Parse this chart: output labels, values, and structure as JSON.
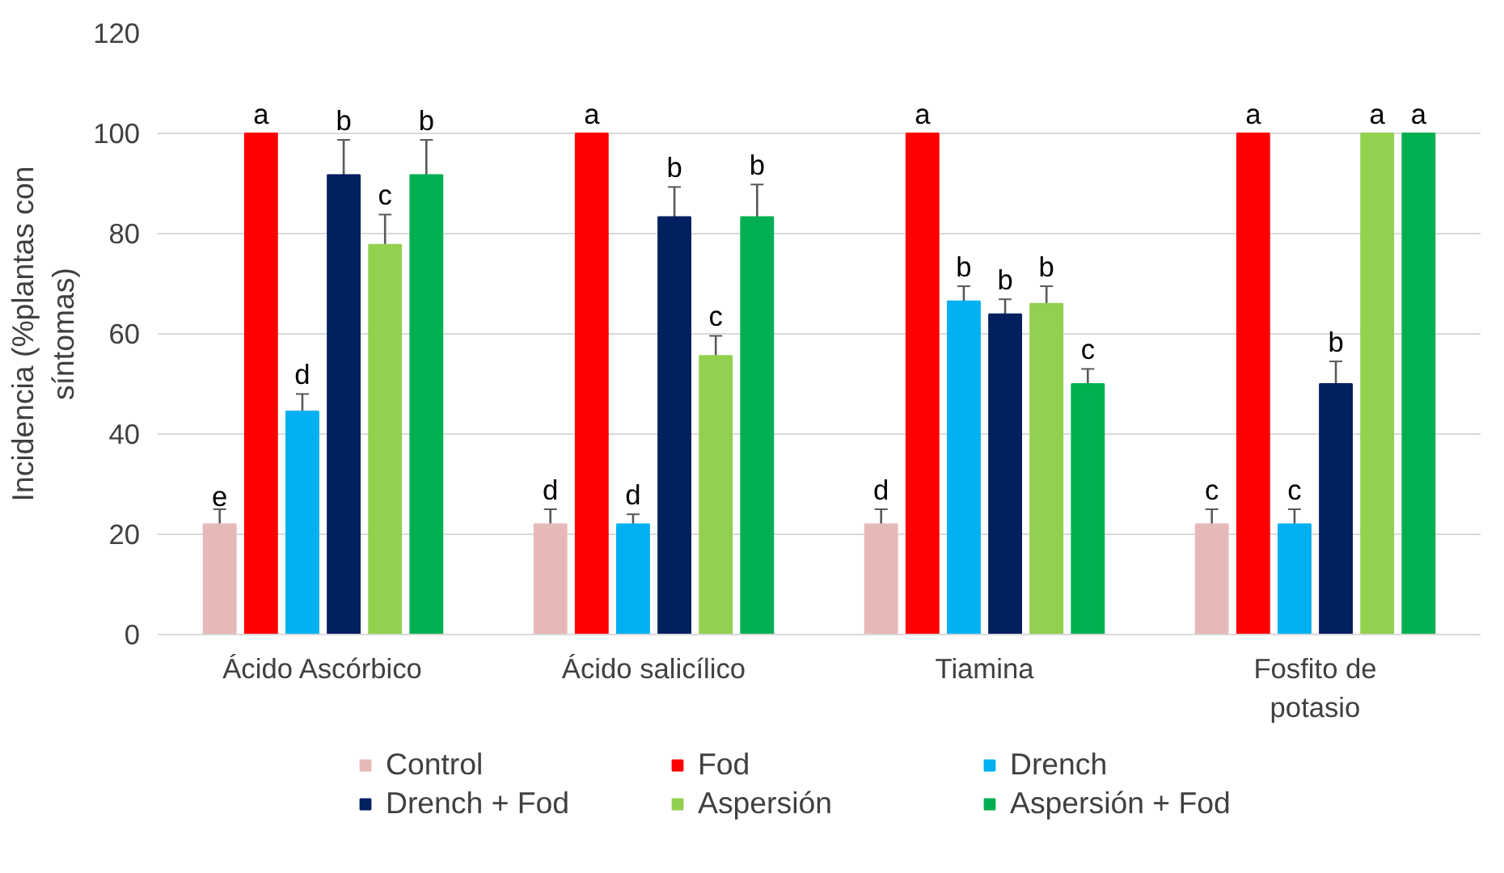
{
  "chart_data": {
    "type": "bar",
    "ylabel": "Incidencia (%plantas con síntomas)",
    "categories": [
      "Ácido Ascórbico",
      "Ácido salicílico",
      "Tiamina",
      "Fosfito de potasio"
    ],
    "ylim": [
      0,
      120
    ],
    "yticks": [
      0,
      20,
      40,
      60,
      80,
      100,
      120
    ],
    "grid": "y",
    "legend": "bottom",
    "series": [
      {
        "name": "Control",
        "color": "#e6b9b8",
        "values": [
          22,
          22,
          22,
          22
        ],
        "errors": [
          3,
          3,
          3,
          3
        ],
        "value_labels": [
          "e",
          "d",
          "d",
          "c"
        ]
      },
      {
        "name": "Fod",
        "color": "#ff0000",
        "values": [
          100,
          100,
          100,
          100
        ],
        "errors": [
          0,
          0,
          0,
          0
        ],
        "value_labels": [
          "a",
          "a",
          "a",
          "a"
        ]
      },
      {
        "name": "Drench",
        "color": "#00b0f0",
        "values": [
          44.5,
          22,
          66.5,
          22
        ],
        "errors": [
          3.5,
          2,
          3,
          3
        ],
        "value_labels": [
          "d",
          "d",
          "b",
          "c"
        ]
      },
      {
        "name": "Drench + Fod",
        "color": "#002060",
        "values": [
          91.7,
          83.3,
          63.9,
          50
        ],
        "errors": [
          7,
          6,
          3,
          4.5
        ],
        "value_labels": [
          "b",
          "b",
          "b",
          "b"
        ]
      },
      {
        "name": "Aspersión",
        "color": "#92d050",
        "values": [
          77.8,
          55.6,
          66,
          100
        ],
        "errors": [
          6,
          4,
          3.5,
          0
        ],
        "value_labels": [
          "c",
          "c",
          "b",
          "a"
        ]
      },
      {
        "name": "Aspersión + Fod",
        "color": "#00b050",
        "values": [
          91.7,
          83.3,
          50,
          100
        ],
        "errors": [
          7,
          6.5,
          3,
          0
        ],
        "value_labels": [
          "b",
          "b",
          "c",
          "a"
        ]
      }
    ]
  }
}
